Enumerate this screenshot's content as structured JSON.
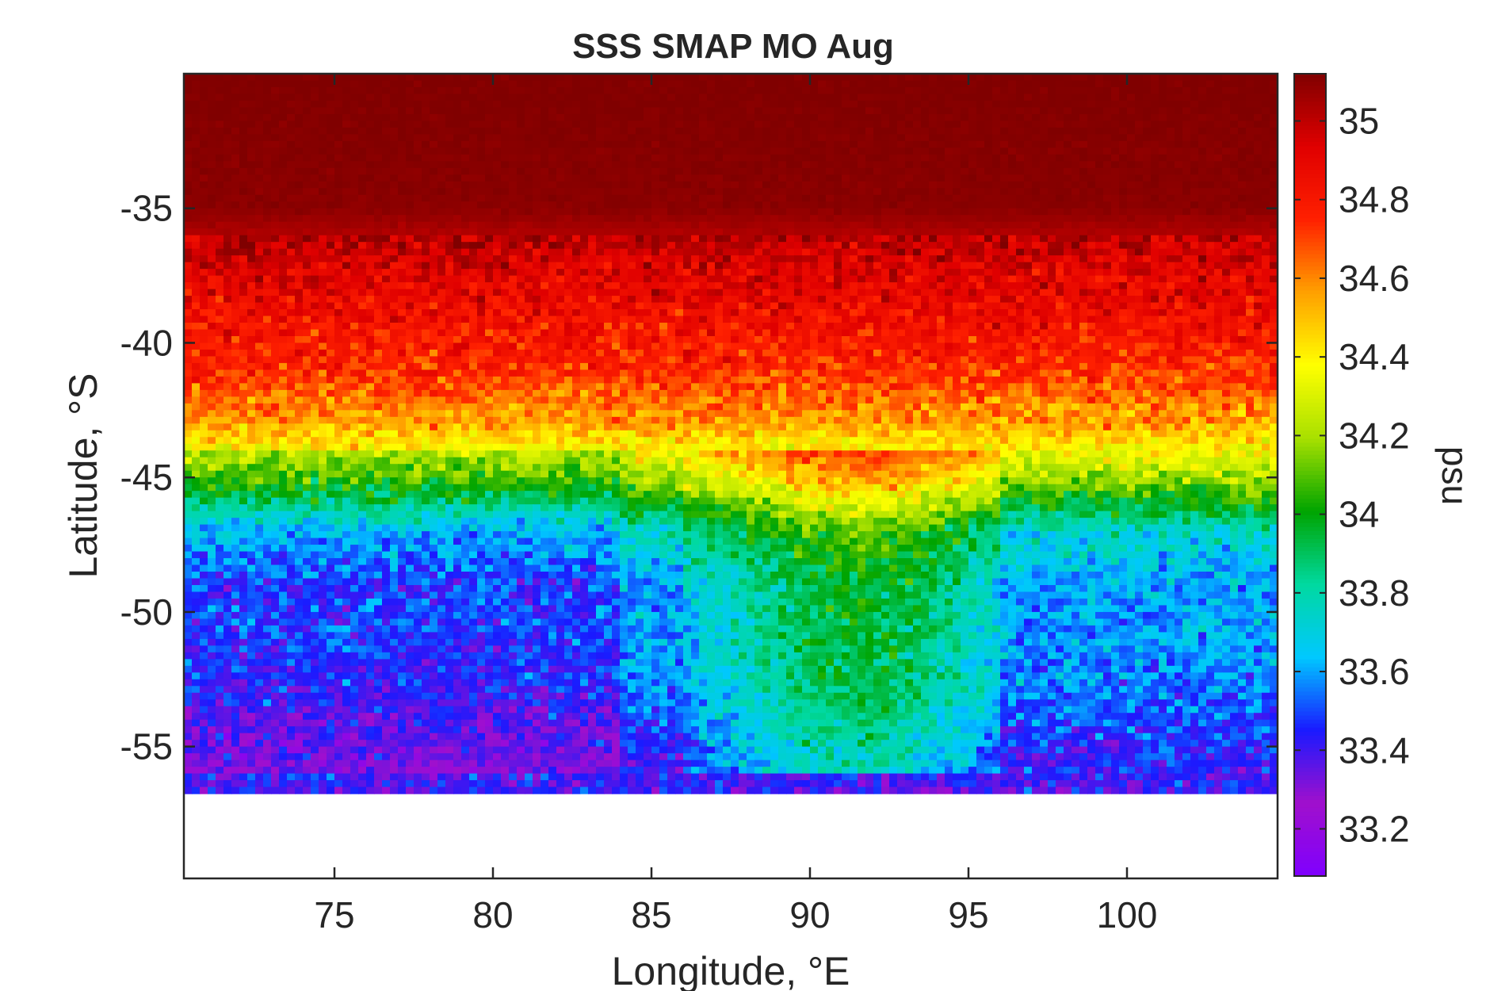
{
  "chart_data": {
    "type": "heatmap",
    "title": "SSS SMAP MO Aug",
    "xlabel": "Longitude, °E",
    "ylabel": "Latitude, °S",
    "colorbar_label": "psu",
    "xlim": [
      70.25,
      104.75
    ],
    "ylim": [
      -59.9,
      -30.0
    ],
    "xticks": [
      75,
      80,
      85,
      90,
      95,
      100
    ],
    "xtick_labels": [
      "75",
      "80",
      "85",
      "90",
      "95",
      "100"
    ],
    "yticks": [
      -35,
      -40,
      -45,
      -50,
      -55
    ],
    "ytick_labels": [
      "-35",
      "-40",
      "-45",
      "-50",
      "-55"
    ],
    "clim": [
      33.08,
      35.12
    ],
    "cticks": [
      35,
      34.8,
      34.6,
      34.4,
      34.2,
      34,
      33.8,
      33.6,
      33.4,
      33.2
    ],
    "ctick_labels": [
      "35",
      "34.8",
      "34.6",
      "34.4",
      "34.2",
      "34",
      "33.8",
      "33.6",
      "33.4",
      "33.2"
    ],
    "colormap": [
      "#7f00ff",
      "#a010cc",
      "#1a1aff",
      "#00c8ff",
      "#00d9a0",
      "#00a400",
      "#a8e000",
      "#ffff00",
      "#ffa000",
      "#ff2000",
      "#e00000",
      "#800000"
    ],
    "grid": false,
    "zonal_mean_profile": {
      "lat": [
        -30.0,
        -35.0,
        -37.0,
        -39.0,
        -41.0,
        -43.0,
        -45.0,
        -47.0,
        -49.0,
        -51.0,
        -53.0,
        -55.0,
        -56.8
      ],
      "sss": [
        35.12,
        35.1,
        34.95,
        34.85,
        34.75,
        34.55,
        34.2,
        33.75,
        33.6,
        33.6,
        33.55,
        33.45,
        33.4
      ]
    },
    "no_data_below_lat": -56.8
  }
}
